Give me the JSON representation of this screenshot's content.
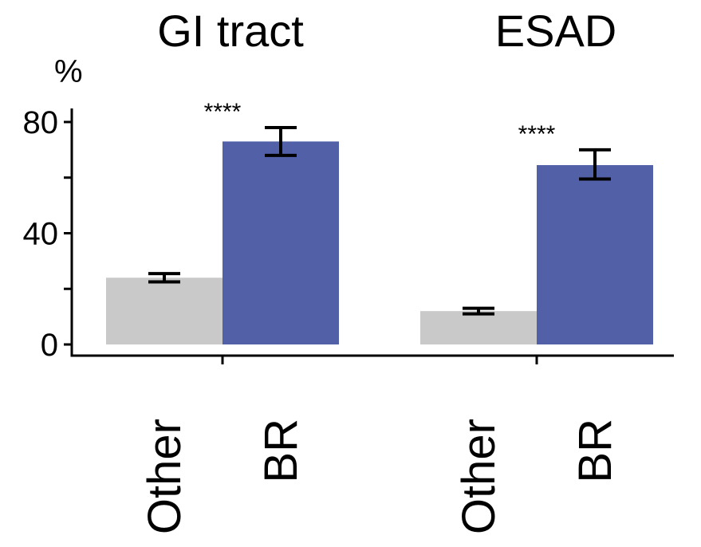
{
  "chart_data": {
    "type": "bar",
    "ylabel": "%",
    "ylim": [
      0,
      84
    ],
    "yticks": [
      0,
      40,
      80
    ],
    "grid": false,
    "legend": "none",
    "colors": {
      "Other": "#c9c9c9",
      "BR": "#5260a8"
    },
    "groups": [
      {
        "title": "GI tract",
        "significance": "****",
        "bars": [
          {
            "category": "Other",
            "value": 24,
            "err_low": 22.5,
            "err_high": 25.5
          },
          {
            "category": "BR",
            "value": 73,
            "err_low": 68,
            "err_high": 78
          }
        ]
      },
      {
        "title": "ESAD",
        "significance": "****",
        "bars": [
          {
            "category": "Other",
            "value": 12,
            "err_low": 11,
            "err_high": 13
          },
          {
            "category": "BR",
            "value": 64.5,
            "err_low": 59.5,
            "err_high": 70
          }
        ]
      }
    ]
  }
}
